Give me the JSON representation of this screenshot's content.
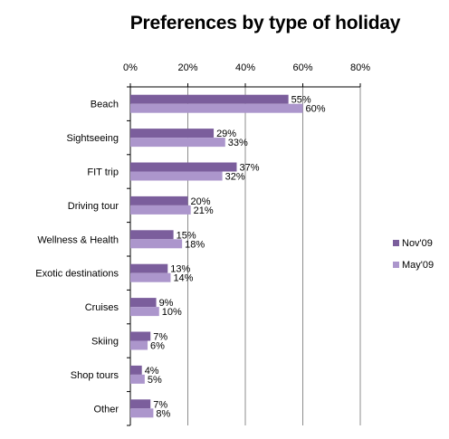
{
  "chart_data": {
    "type": "bar",
    "orientation": "horizontal",
    "title": "Preferences by type of holiday",
    "categories": [
      "Beach",
      "Sightseeing",
      "FIT trip",
      "Driving tour",
      "Wellness & Health",
      "Exotic destinations",
      "Cruises",
      "Skiing",
      "Shop tours",
      "Other"
    ],
    "series": [
      {
        "name": "Nov'09",
        "values": [
          55,
          29,
          37,
          20,
          15,
          13,
          9,
          7,
          4,
          7
        ],
        "color": "#7B5E9C"
      },
      {
        "name": "May'09",
        "values": [
          60,
          33,
          32,
          21,
          18,
          14,
          10,
          6,
          5,
          8
        ],
        "color": "#AC96CC"
      }
    ],
    "xlim": [
      0,
      80
    ],
    "xticks": [
      0,
      20,
      40,
      60,
      80
    ],
    "tick_format": "{v}%",
    "value_format": "{v}%",
    "axis_position": "top",
    "grid": true,
    "legend_position": "right"
  }
}
